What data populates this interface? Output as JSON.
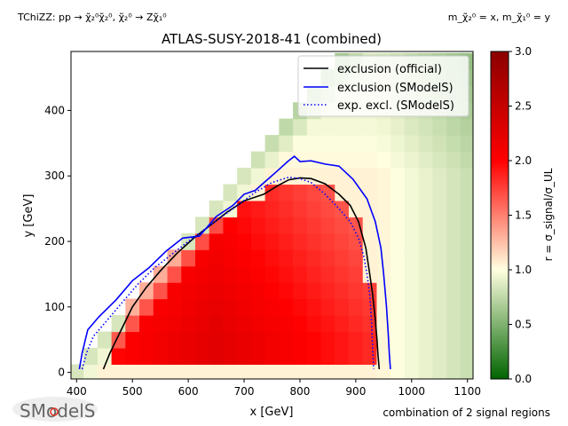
{
  "chart_data": {
    "type": "heatmap",
    "title": "ATLAS-SUSY-2018-41 (combined)",
    "process_label": "TChiZZ: pp → χ̃₂⁰χ̃₂⁰, χ̃₂⁰ → Zχ̃₁⁰",
    "mass_label": "m_χ̃₂⁰ = x, m_χ̃₁⁰ = y",
    "xlabel": "x [GeV]",
    "ylabel": "y [GeV]",
    "colorbar_label": "r = σ_signal/σ_UL",
    "footer_label": "combination of 2 signal regions",
    "logo_text": "SModelS",
    "xlim": [
      390,
      1110
    ],
    "ylim": [
      -10,
      490
    ],
    "xticks": [
      400,
      500,
      600,
      700,
      800,
      900,
      1000,
      1100
    ],
    "yticks": [
      0,
      100,
      200,
      300,
      400
    ],
    "colorbar_range": [
      0.0,
      3.0
    ],
    "colorbar_ticks": [
      0.0,
      0.5,
      1.0,
      1.5,
      2.0,
      2.5,
      3.0
    ],
    "colormap": [
      "#006400",
      "#FFFFE0",
      "#FF0000",
      "#8B0000"
    ],
    "grid": false,
    "legend_position": "top-right",
    "legend": [
      {
        "label": "exclusion (official)",
        "color": "#000000",
        "style": "solid"
      },
      {
        "label": "exclusion (SModelS)",
        "color": "#0000FF",
        "style": "solid"
      },
      {
        "label": "exp. excl. (SModelS)",
        "color": "#0000FF",
        "style": "dotted"
      }
    ],
    "series": [
      {
        "name": "exclusion (official)",
        "color": "#000000",
        "style": "solid",
        "x": [
          448,
          460,
          480,
          500,
          525,
          550,
          580,
          610,
          640,
          670,
          700,
          735,
          760,
          780,
          800,
          820,
          845,
          870,
          890,
          905,
          918,
          925,
          930,
          935,
          938,
          940,
          942
        ],
        "y": [
          5,
          30,
          65,
          100,
          130,
          155,
          182,
          205,
          225,
          245,
          262,
          272,
          285,
          294,
          297,
          296,
          288,
          272,
          255,
          230,
          190,
          150,
          120,
          80,
          50,
          25,
          5
        ]
      },
      {
        "name": "exclusion (SModelS)",
        "color": "#0000FF",
        "style": "solid",
        "x": [
          405,
          410,
          420,
          440,
          470,
          500,
          530,
          560,
          590,
          620,
          650,
          680,
          700,
          720,
          740,
          760,
          778,
          790,
          800,
          820,
          845,
          870,
          895,
          920,
          935,
          945,
          950,
          955,
          958,
          960,
          962
        ],
        "y": [
          5,
          30,
          65,
          85,
          110,
          140,
          160,
          185,
          205,
          208,
          238,
          255,
          272,
          278,
          293,
          308,
          322,
          330,
          322,
          323,
          318,
          315,
          295,
          265,
          230,
          190,
          150,
          100,
          60,
          30,
          5
        ]
      },
      {
        "name": "exp. excl. (SModelS)",
        "color": "#0000FF",
        "style": "dotted",
        "x": [
          410,
          418,
          430,
          450,
          480,
          510,
          540,
          570,
          600,
          640,
          680,
          720,
          750,
          780,
          800,
          820,
          845,
          870,
          890,
          905,
          915,
          920,
          925,
          928,
          930,
          932
        ],
        "y": [
          5,
          30,
          55,
          75,
          105,
          135,
          160,
          180,
          200,
          225,
          250,
          275,
          290,
          298,
          296,
          290,
          272,
          250,
          230,
          205,
          175,
          150,
          120,
          80,
          40,
          5
        ]
      }
    ]
  }
}
